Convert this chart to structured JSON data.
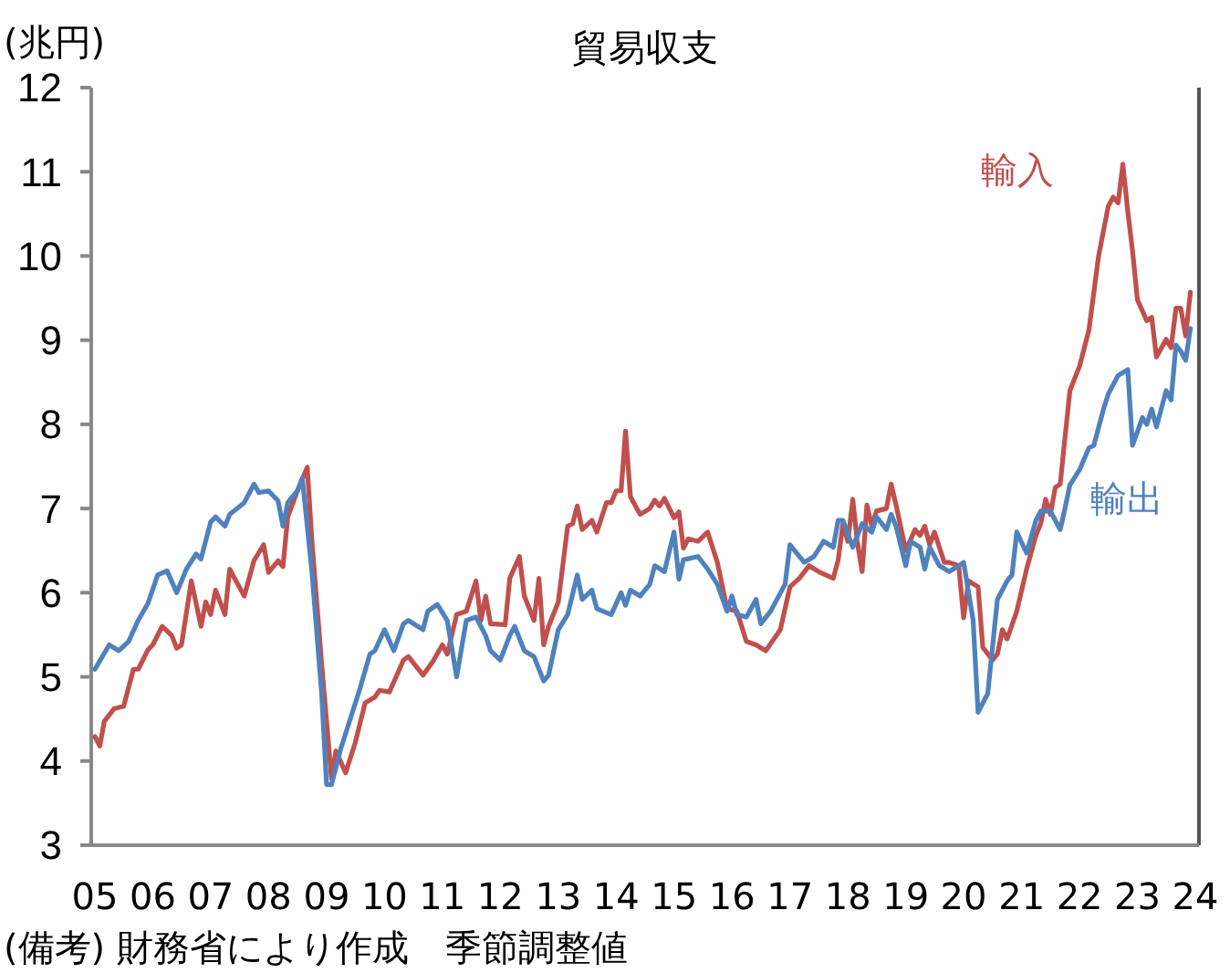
{
  "chart_data": {
    "type": "line",
    "title": "貿易収支",
    "ylabel": "(兆円)",
    "annotations": [
      "(備考) 財務省により作成　季節調整値"
    ],
    "xlim": [
      "2005-01",
      "2024-01"
    ],
    "xticks": [
      {
        "value": "2005-01",
        "label": "05"
      },
      {
        "value": "2006-01",
        "label": "06"
      },
      {
        "value": "2007-01",
        "label": "07"
      },
      {
        "value": "2008-01",
        "label": "08"
      },
      {
        "value": "2009-01",
        "label": "09"
      },
      {
        "value": "2010-01",
        "label": "10"
      },
      {
        "value": "2011-01",
        "label": "11"
      },
      {
        "value": "2012-01",
        "label": "12"
      },
      {
        "value": "2013-01",
        "label": "13"
      },
      {
        "value": "2014-01",
        "label": "14"
      },
      {
        "value": "2015-01",
        "label": "15"
      },
      {
        "value": "2016-01",
        "label": "16"
      },
      {
        "value": "2017-01",
        "label": "17"
      },
      {
        "value": "2018-01",
        "label": "18"
      },
      {
        "value": "2019-01",
        "label": "19"
      },
      {
        "value": "2020-01",
        "label": "20"
      },
      {
        "value": "2021-01",
        "label": "21"
      },
      {
        "value": "2022-01",
        "label": "22"
      },
      {
        "value": "2023-01",
        "label": "23"
      },
      {
        "value": "2024-01",
        "label": "24"
      }
    ],
    "ylim": [
      3,
      12
    ],
    "yticks": [
      3,
      4,
      5,
      6,
      7,
      8,
      9,
      10,
      11,
      12
    ],
    "grid": false,
    "legend": false,
    "marker": "none",
    "line_style": "solid",
    "series": [
      {
        "name": "輸入",
        "color": "#c0504d",
        "x": [
          "2005-01",
          "2005-02",
          "2005-03",
          "2005-05",
          "2005-07",
          "2005-09",
          "2005-10",
          "2005-12",
          "2006-01",
          "2006-03",
          "2006-05",
          "2006-06",
          "2006-07",
          "2006-09",
          "2006-11",
          "2006-12",
          "2007-01",
          "2007-02",
          "2007-04",
          "2007-05",
          "2007-06",
          "2007-08",
          "2007-10",
          "2007-12",
          "2008-01",
          "2008-03",
          "2008-04",
          "2008-05",
          "2008-07",
          "2008-09",
          "2008-10",
          "2008-12",
          "2009-02",
          "2009-03",
          "2009-05",
          "2009-07",
          "2009-09",
          "2009-11",
          "2009-12",
          "2010-02",
          "2010-05",
          "2010-06",
          "2010-09",
          "2010-11",
          "2011-01",
          "2011-02",
          "2011-04",
          "2011-06",
          "2011-08",
          "2011-09",
          "2011-10",
          "2011-11",
          "2012-02",
          "2012-03",
          "2012-05",
          "2012-06",
          "2012-08",
          "2012-09",
          "2012-10",
          "2012-11",
          "2013-01",
          "2013-03",
          "2013-04",
          "2013-05",
          "2013-06",
          "2013-08",
          "2013-09",
          "2013-11",
          "2013-12",
          "2014-01",
          "2014-02",
          "2014-03",
          "2014-04",
          "2014-06",
          "2014-08",
          "2014-09",
          "2014-10",
          "2014-11",
          "2015-01",
          "2015-02",
          "2015-03",
          "2015-04",
          "2015-06",
          "2015-08",
          "2015-10",
          "2015-12",
          "2016-02",
          "2016-04",
          "2016-06",
          "2016-08",
          "2016-11",
          "2017-01",
          "2017-03",
          "2017-05",
          "2017-07",
          "2017-10",
          "2017-11",
          "2017-12",
          "2018-01",
          "2018-02",
          "2018-03",
          "2018-04",
          "2018-05",
          "2018-06",
          "2018-07",
          "2018-09",
          "2018-10",
          "2018-11",
          "2019-01",
          "2019-03",
          "2019-04",
          "2019-05",
          "2019-06",
          "2019-07",
          "2019-09",
          "2019-10",
          "2019-12",
          "2020-01",
          "2020-02",
          "2020-04",
          "2020-05",
          "2020-07",
          "2020-08",
          "2020-09",
          "2020-10",
          "2020-12",
          "2021-02",
          "2021-04",
          "2021-05",
          "2021-06",
          "2021-07",
          "2021-08",
          "2021-09",
          "2021-10",
          "2021-11",
          "2022-01",
          "2022-03",
          "2022-05",
          "2022-07",
          "2022-08",
          "2022-09",
          "2022-10",
          "2022-11",
          "2022-12",
          "2023-01",
          "2023-03",
          "2023-04",
          "2023-05",
          "2023-07",
          "2023-08",
          "2023-09",
          "2023-10",
          "2023-11",
          "2023-12"
        ],
        "values": [
          4.29,
          4.18,
          4.47,
          4.62,
          4.65,
          5.09,
          5.09,
          5.32,
          5.38,
          5.6,
          5.49,
          5.34,
          5.38,
          6.14,
          5.6,
          5.89,
          5.74,
          6.03,
          5.74,
          6.28,
          6.17,
          5.96,
          6.38,
          6.57,
          6.24,
          6.38,
          6.31,
          6.9,
          7.21,
          7.49,
          6.6,
          5.15,
          3.79,
          4.12,
          3.86,
          4.22,
          4.69,
          4.76,
          4.84,
          4.82,
          5.2,
          5.24,
          5.02,
          5.18,
          5.38,
          5.27,
          5.74,
          5.78,
          6.14,
          5.67,
          5.96,
          5.63,
          5.62,
          6.17,
          6.43,
          5.96,
          5.67,
          6.17,
          5.38,
          5.6,
          5.89,
          6.79,
          6.82,
          7.03,
          6.75,
          6.86,
          6.72,
          7.07,
          7.07,
          7.21,
          7.21,
          7.92,
          7.14,
          6.93,
          7.0,
          7.1,
          7.03,
          7.12,
          6.89,
          6.96,
          6.53,
          6.64,
          6.61,
          6.72,
          6.36,
          5.81,
          5.78,
          5.42,
          5.38,
          5.31,
          5.56,
          6.07,
          6.17,
          6.32,
          6.25,
          6.17,
          6.39,
          6.82,
          6.61,
          7.11,
          6.61,
          6.25,
          7.04,
          6.79,
          6.97,
          7.0,
          7.29,
          7.04,
          6.5,
          6.75,
          6.68,
          6.79,
          6.57,
          6.72,
          6.36,
          6.36,
          6.32,
          5.7,
          6.14,
          6.07,
          5.35,
          5.2,
          5.27,
          5.56,
          5.45,
          5.78,
          6.28,
          6.68,
          6.82,
          7.11,
          6.93,
          7.25,
          7.29,
          7.84,
          8.4,
          8.69,
          9.12,
          10.0,
          10.59,
          10.7,
          10.63,
          11.09,
          10.53,
          10.06,
          9.48,
          9.23,
          9.27,
          8.8,
          9.01,
          8.91,
          9.38,
          9.38,
          9.05,
          9.57
        ]
      },
      {
        "name": "輸出",
        "color": "#4f81bd",
        "x": [
          "2005-01",
          "2005-04",
          "2005-06",
          "2005-08",
          "2005-10",
          "2005-12",
          "2006-02",
          "2006-04",
          "2006-06",
          "2006-08",
          "2006-10",
          "2006-11",
          "2007-01",
          "2007-02",
          "2007-04",
          "2007-05",
          "2007-08",
          "2007-10",
          "2007-11",
          "2008-01",
          "2008-03",
          "2008-04",
          "2008-05",
          "2008-07",
          "2008-08",
          "2008-10",
          "2008-12",
          "2009-01",
          "2009-02",
          "2009-04",
          "2009-06",
          "2009-08",
          "2009-10",
          "2009-11",
          "2010-01",
          "2010-03",
          "2010-05",
          "2010-06",
          "2010-09",
          "2010-10",
          "2010-12",
          "2011-02",
          "2011-04",
          "2011-06",
          "2011-08",
          "2011-10",
          "2011-11",
          "2012-01",
          "2012-03",
          "2012-04",
          "2012-06",
          "2012-08",
          "2012-10",
          "2012-11",
          "2013-01",
          "2013-03",
          "2013-05",
          "2013-06",
          "2013-08",
          "2013-09",
          "2013-12",
          "2014-02",
          "2014-03",
          "2014-04",
          "2014-06",
          "2014-08",
          "2014-09",
          "2014-11",
          "2015-01",
          "2015-02",
          "2015-03",
          "2015-06",
          "2015-08",
          "2015-10",
          "2015-12",
          "2016-01",
          "2016-02",
          "2016-04",
          "2016-06",
          "2016-07",
          "2016-09",
          "2016-12",
          "2017-01",
          "2017-04",
          "2017-06",
          "2017-08",
          "2017-10",
          "2017-11",
          "2017-12",
          "2018-02",
          "2018-04",
          "2018-06",
          "2018-07",
          "2018-09",
          "2018-10",
          "2018-11",
          "2019-01",
          "2019-02",
          "2019-04",
          "2019-05",
          "2019-06",
          "2019-08",
          "2019-10",
          "2019-12",
          "2020-01",
          "2020-03",
          "2020-04",
          "2020-06",
          "2020-08",
          "2020-10",
          "2020-11",
          "2020-12",
          "2021-02",
          "2021-04",
          "2021-05",
          "2021-07",
          "2021-09",
          "2021-10",
          "2021-11",
          "2022-01",
          "2022-03",
          "2022-04",
          "2022-06",
          "2022-07",
          "2022-09",
          "2022-11",
          "2022-12",
          "2023-02",
          "2023-03",
          "2023-04",
          "2023-05",
          "2023-07",
          "2023-08",
          "2023-09",
          "2023-10",
          "2023-11",
          "2023-12"
        ],
        "values": [
          5.09,
          5.38,
          5.31,
          5.42,
          5.67,
          5.87,
          6.21,
          6.26,
          6.0,
          6.28,
          6.46,
          6.4,
          6.84,
          6.9,
          6.79,
          6.93,
          7.07,
          7.29,
          7.19,
          7.21,
          7.09,
          6.79,
          7.07,
          7.21,
          7.36,
          6.24,
          4.8,
          3.72,
          3.72,
          4.15,
          4.51,
          4.87,
          5.27,
          5.31,
          5.56,
          5.31,
          5.63,
          5.67,
          5.56,
          5.78,
          5.86,
          5.67,
          5.0,
          5.67,
          5.71,
          5.49,
          5.31,
          5.2,
          5.49,
          5.6,
          5.31,
          5.24,
          4.95,
          5.02,
          5.56,
          5.74,
          6.21,
          5.92,
          6.03,
          5.81,
          5.74,
          6.0,
          5.85,
          6.03,
          5.96,
          6.1,
          6.32,
          6.25,
          6.72,
          6.16,
          6.39,
          6.43,
          6.28,
          6.1,
          5.78,
          5.96,
          5.74,
          5.71,
          5.92,
          5.63,
          5.78,
          6.1,
          6.57,
          6.36,
          6.43,
          6.61,
          6.54,
          6.86,
          6.86,
          6.54,
          6.82,
          6.72,
          6.9,
          6.75,
          6.93,
          6.79,
          6.32,
          6.61,
          6.54,
          6.28,
          6.54,
          6.32,
          6.25,
          6.32,
          6.36,
          5.67,
          4.58,
          4.8,
          5.92,
          6.14,
          6.21,
          6.72,
          6.47,
          6.86,
          6.97,
          6.97,
          6.75,
          7.0,
          7.28,
          7.46,
          7.72,
          7.75,
          8.18,
          8.36,
          8.58,
          8.65,
          7.75,
          8.08,
          8.0,
          8.18,
          7.97,
          8.4,
          8.29,
          8.94,
          8.87,
          8.76,
          9.14
        ]
      }
    ]
  }
}
